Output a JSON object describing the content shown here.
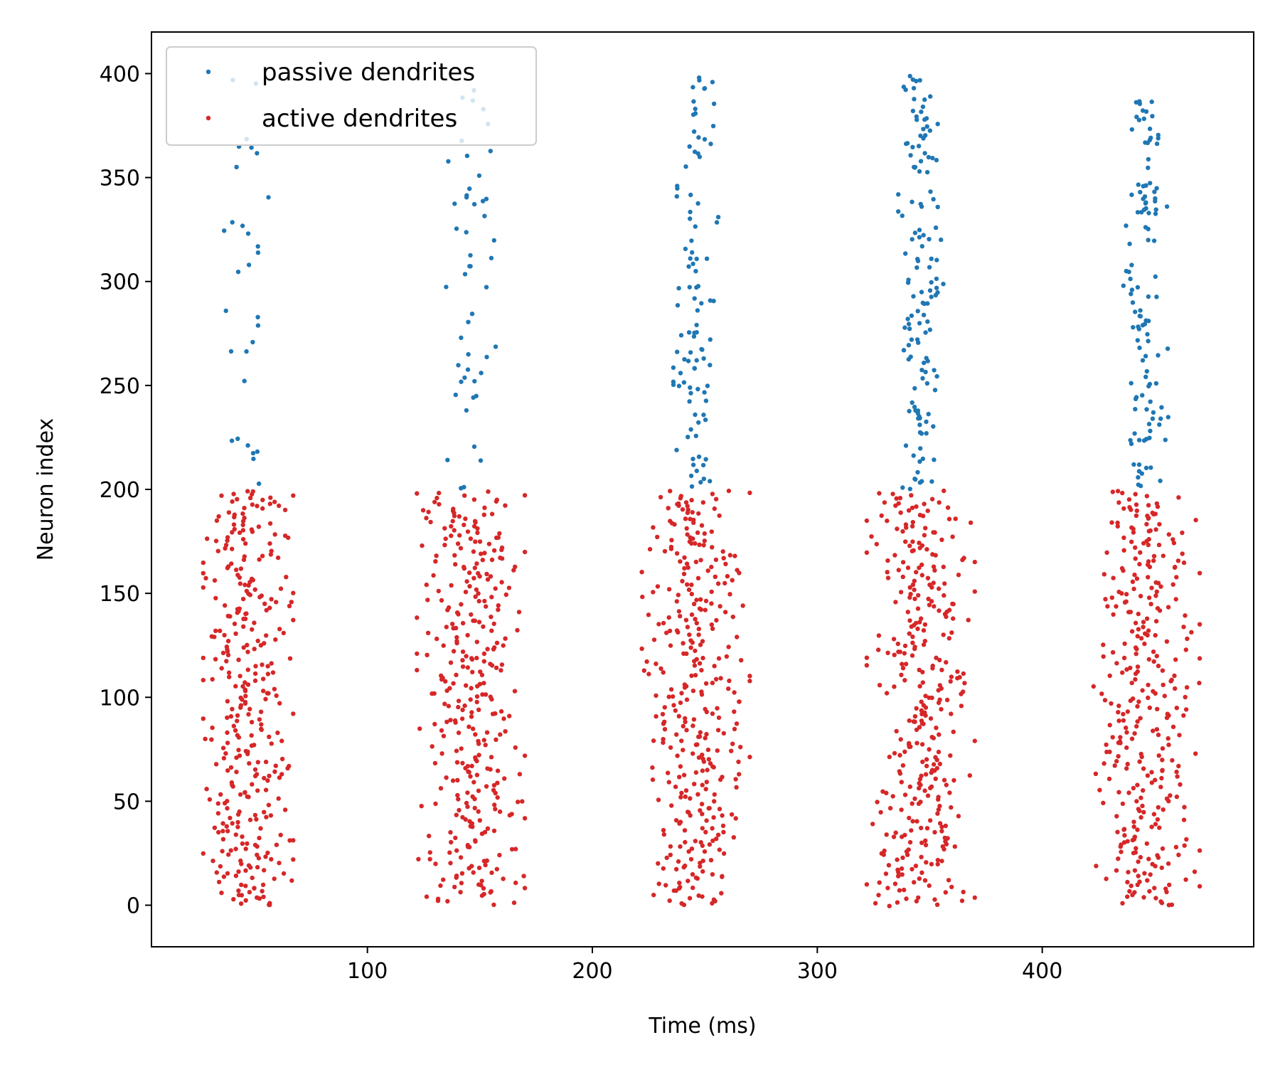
{
  "chart_data": {
    "type": "scatter",
    "xlabel": "Time (ms)",
    "ylabel": "Neuron index",
    "xlim": [
      4,
      494
    ],
    "ylim": [
      -20,
      420
    ],
    "xticks": [
      100,
      200,
      300,
      400
    ],
    "yticks": [
      0,
      50,
      100,
      150,
      200,
      250,
      300,
      350,
      400
    ],
    "grid": false,
    "legend": {
      "position": "upper-left"
    },
    "bursts": [
      {
        "center": 47,
        "active_halfwidth": 20,
        "passive_halfwidth": 11,
        "passive_count": 30
      },
      {
        "center": 146,
        "active_halfwidth": 24,
        "passive_halfwidth": 11,
        "passive_count": 50
      },
      {
        "center": 246,
        "active_halfwidth": 24,
        "passive_halfwidth": 10,
        "passive_count": 100
      },
      {
        "center": 346,
        "active_halfwidth": 24,
        "passive_halfwidth": 10,
        "passive_count": 140
      },
      {
        "center": 446,
        "active_halfwidth": 24,
        "passive_halfwidth": 10,
        "passive_count": 120
      }
    ],
    "series": [
      {
        "name": "passive dendrites",
        "color": "#1f77b4",
        "neuron_range": [
          200,
          399
        ]
      },
      {
        "name": "active dendrites",
        "color": "#d62728",
        "neuron_range": [
          0,
          199
        ]
      }
    ]
  }
}
